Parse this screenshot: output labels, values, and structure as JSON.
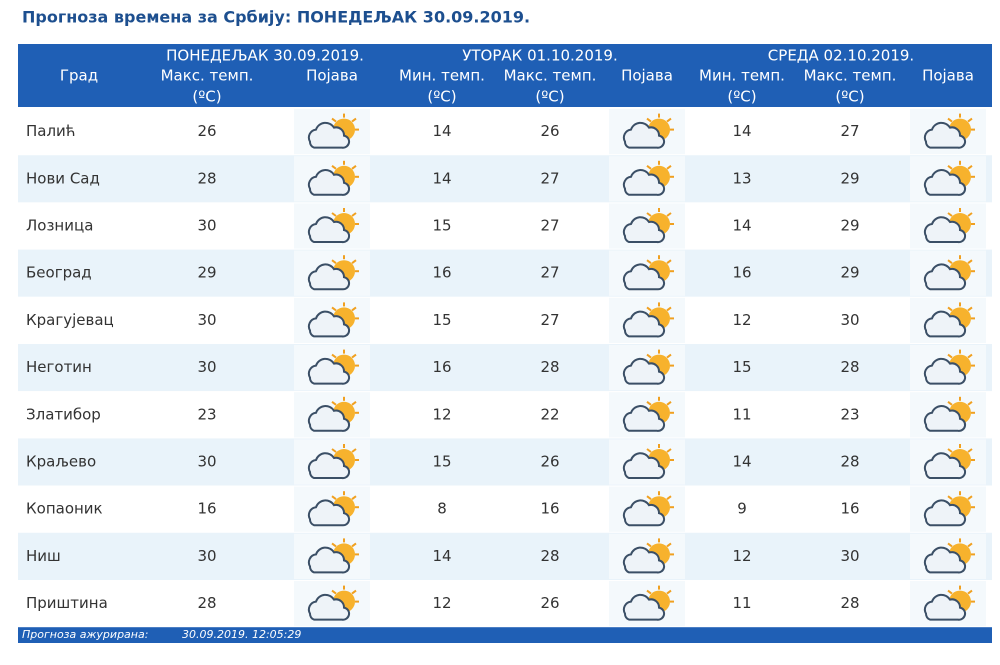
{
  "header": {
    "title": "Прогноза времена за Србију: ПОНЕДЕЉАК  30.09.2019."
  },
  "table": {
    "days": [
      "ПОНЕДЕЉАК  30.09.2019.",
      "УТОРАК  01.10.2019.",
      "СРЕДА  02.10.2019."
    ],
    "columns": [
      "Град",
      "Макс. темп.",
      "Појава",
      "Мин. темп.",
      "Макс. темп.",
      "Појава",
      "Мин. темп.",
      "Макс. темп.",
      "Појава"
    ],
    "unit": "(ºC)",
    "rows": [
      [
        "Палић",
        26,
        14,
        26,
        14,
        27
      ],
      [
        "Нови Сад",
        28,
        14,
        27,
        13,
        29
      ],
      [
        "Лозница",
        30,
        15,
        27,
        14,
        29
      ],
      [
        "Београд",
        29,
        16,
        27,
        16,
        29
      ],
      [
        "Крагујевац",
        30,
        15,
        27,
        12,
        30
      ],
      [
        "Неготин",
        30,
        16,
        28,
        15,
        28
      ],
      [
        "Златибор",
        23,
        12,
        22,
        11,
        23
      ],
      [
        "Краљево",
        30,
        15,
        26,
        14,
        28
      ],
      [
        "Копаоник",
        16,
        8,
        16,
        9,
        16
      ],
      [
        "Ниш",
        30,
        14,
        28,
        12,
        30
      ],
      [
        "Приштина",
        28,
        12,
        26,
        11,
        28
      ]
    ]
  },
  "footer": {
    "label": "Прогноза ажурирана:",
    "value": "30.09.2019. 12:05:29"
  }
}
